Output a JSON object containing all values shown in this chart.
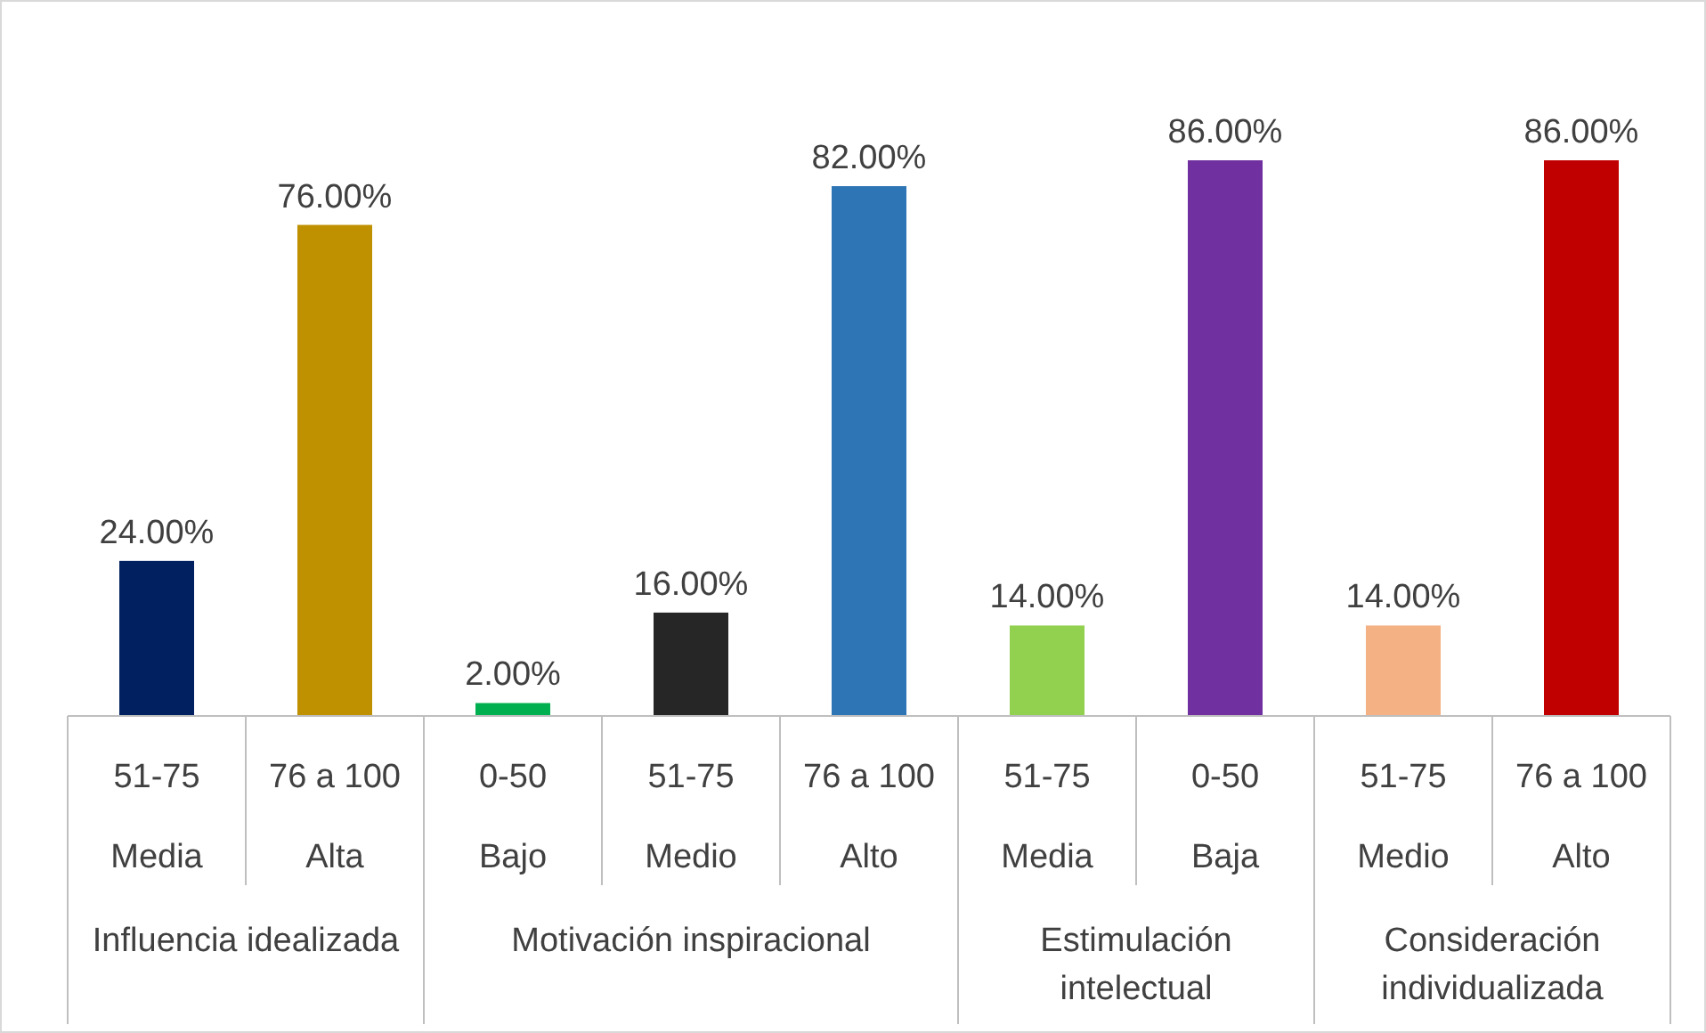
{
  "chart_data": {
    "type": "bar",
    "categories": [
      "51-75\nMedia",
      "76 a 100\nAlta",
      "0-50\nBajo",
      "51-75\nMedio",
      "76 a 100\nAlto",
      "51-75\nMedia",
      "0-50\nBaja",
      "51-75\nMedio",
      "76 a 100\nAlto"
    ],
    "values": [
      24,
      76,
      2,
      16,
      82,
      14,
      86,
      14,
      86
    ],
    "value_labels": [
      "24.00%",
      "76.00%",
      "2.00%",
      "16.00%",
      "82.00%",
      "14.00%",
      "86.00%",
      "14.00%",
      "86.00%"
    ],
    "colors": [
      "#002060",
      "#bf9000",
      "#00b050",
      "#262626",
      "#2e75b6",
      "#92d050",
      "#7030a0",
      "#f4b183",
      "#c00000"
    ],
    "annotations": [
      "Influencia idealizada",
      "Motivación inspiracional",
      "Estimulación\nintelectual",
      "Consideración\nindividualizada"
    ]
  }
}
